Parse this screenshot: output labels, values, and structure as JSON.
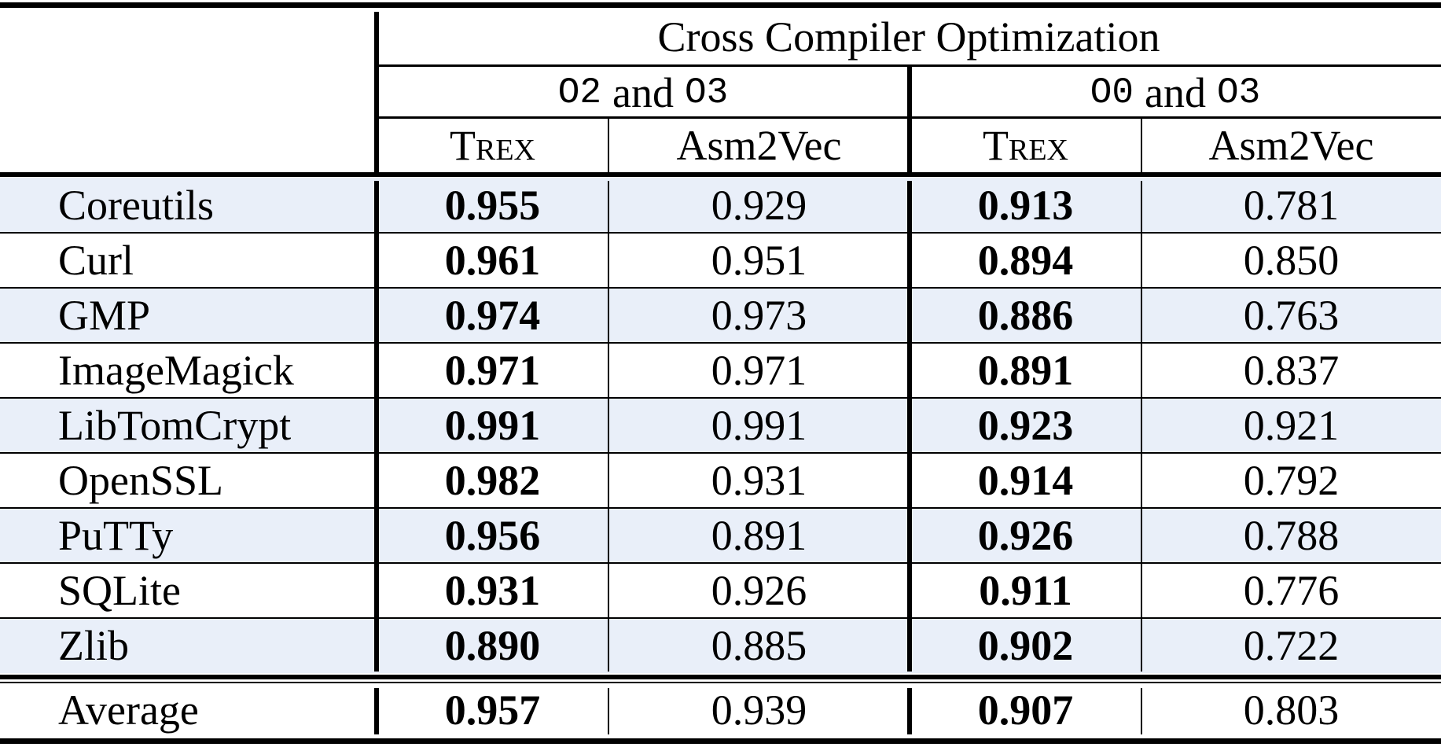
{
  "table": {
    "title": "Cross Compiler Optimization",
    "groups": [
      {
        "opt_a": "O2",
        "joiner": "and",
        "opt_b": "O3"
      },
      {
        "opt_a": "O0",
        "joiner": "and",
        "opt_b": "O3"
      }
    ],
    "columns": [
      "Trex",
      "Asm2Vec",
      "Trex",
      "Asm2Vec"
    ],
    "rows": [
      [
        "Coreutils",
        "0.955",
        "0.929",
        "0.913",
        "0.781"
      ],
      [
        "Curl",
        "0.961",
        "0.951",
        "0.894",
        "0.850"
      ],
      [
        "GMP",
        "0.974",
        "0.973",
        "0.886",
        "0.763"
      ],
      [
        "ImageMagick",
        "0.971",
        "0.971",
        "0.891",
        "0.837"
      ],
      [
        "LibTomCrypt",
        "0.991",
        "0.991",
        "0.923",
        "0.921"
      ],
      [
        "OpenSSL",
        "0.982",
        "0.931",
        "0.914",
        "0.792"
      ],
      [
        "PuTTy",
        "0.956",
        "0.891",
        "0.926",
        "0.788"
      ],
      [
        "SQLite",
        "0.931",
        "0.926",
        "0.911",
        "0.776"
      ],
      [
        "Zlib",
        "0.890",
        "0.885",
        "0.902",
        "0.722"
      ]
    ],
    "average": [
      "Average",
      "0.957",
      "0.939",
      "0.907",
      "0.803"
    ]
  }
}
